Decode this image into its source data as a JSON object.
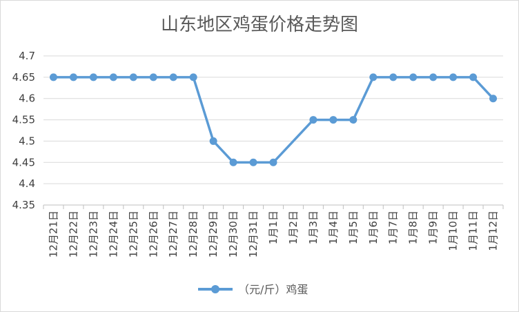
{
  "chart_data": {
    "type": "line",
    "title": "山东地区鸡蛋价格走势图",
    "xlabel": "",
    "ylabel": "",
    "categories": [
      "12月21日",
      "12月22日",
      "12月23日",
      "12月24日",
      "12月25日",
      "12月26日",
      "12月27日",
      "12月28日",
      "12月29日",
      "12月30日",
      "12月31日",
      "1月1日",
      "1月2日",
      "1月3日",
      "1月4日",
      "1月5日",
      "1月6日",
      "1月7日",
      "1月8日",
      "1月9日",
      "1月10日",
      "1月11日",
      "1月12日"
    ],
    "series": [
      {
        "name": "（元/斤）鸡蛋",
        "values": [
          4.65,
          4.65,
          4.65,
          4.65,
          4.65,
          4.65,
          4.65,
          4.65,
          4.5,
          4.45,
          4.45,
          4.45,
          null,
          4.55,
          4.55,
          4.55,
          4.65,
          4.65,
          4.65,
          4.65,
          4.65,
          4.65,
          4.6
        ],
        "color": "#5b9bd5"
      }
    ],
    "ylim": [
      4.35,
      4.7
    ],
    "yticks": [
      "4.35",
      "4.4",
      "4.45",
      "4.5",
      "4.55",
      "4.6",
      "4.65",
      "4.7"
    ],
    "grid": true,
    "legend_position": "bottom"
  }
}
